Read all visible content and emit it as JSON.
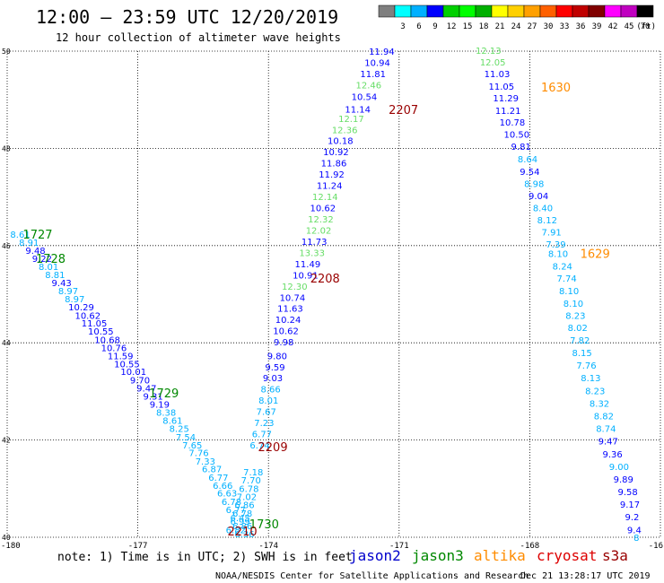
{
  "header": {
    "title": "12:00 – 23:59 UTC 12/20/2019",
    "subtitle": "12 hour collection of altimeter wave heights"
  },
  "legend_scale": {
    "unit": "(ft)",
    "items": [
      {
        "label": "",
        "color": "#7f7f7f"
      },
      {
        "label": "3",
        "color": "#00ffff"
      },
      {
        "label": "6",
        "color": "#00b0ff"
      },
      {
        "label": "9",
        "color": "#0000ff"
      },
      {
        "label": "12",
        "color": "#00d000"
      },
      {
        "label": "15",
        "color": "#00ff00"
      },
      {
        "label": "18",
        "color": "#00b000"
      },
      {
        "label": "21",
        "color": "#ffff00"
      },
      {
        "label": "24",
        "color": "#ffd000"
      },
      {
        "label": "27",
        "color": "#ffa000"
      },
      {
        "label": "30",
        "color": "#ff6000"
      },
      {
        "label": "33",
        "color": "#ff0000"
      },
      {
        "label": "36",
        "color": "#c00000"
      },
      {
        "label": "39",
        "color": "#800000"
      },
      {
        "label": "42",
        "color": "#ff00ff"
      },
      {
        "label": "45",
        "color": "#c000c0"
      },
      {
        "label": "70",
        "color": "#000000"
      }
    ]
  },
  "footer": {
    "note": "note:  1) Time is in UTC;  2) SWH is in feet",
    "satellites": [
      {
        "name": "jason2",
        "color": "#0000cc"
      },
      {
        "name": "jason3",
        "color": "#008800"
      },
      {
        "name": "altika",
        "color": "#ff8c00"
      },
      {
        "name": "cryosat",
        "color": "#dd0000"
      },
      {
        "name": "s3a",
        "color": "#990000"
      }
    ],
    "credit": "NOAA/NESDIS Center for Satellite Applications and Research",
    "timestamp": "Dec 21 13:28:17 UTC 2019"
  },
  "chart_data": {
    "type": "scatter",
    "xlim": [
      -180,
      -165
    ],
    "ylim": [
      40,
      50
    ],
    "xticks": [
      -177,
      -174,
      -171,
      -168
    ],
    "xtick_labels": [
      "-177",
      "-174",
      "-171",
      "-168"
    ],
    "xedge_labels": [
      "-180",
      "-16"
    ],
    "yticks": [
      40,
      42,
      44,
      46,
      48,
      50
    ],
    "grid": true,
    "pass_labels": [
      {
        "text": "1727",
        "lon": -179.3,
        "lat": 46.24,
        "color": "#008800"
      },
      {
        "text": "1728",
        "lon": -179.0,
        "lat": 45.74,
        "color": "#008800"
      },
      {
        "text": "1729",
        "lon": -176.4,
        "lat": 42.97,
        "color": "#008800"
      },
      {
        "text": "1730",
        "lon": -174.1,
        "lat": 40.28,
        "color": "#008800"
      },
      {
        "text": "2210",
        "lon": -174.6,
        "lat": 40.13,
        "color": "#990000"
      },
      {
        "text": "2209",
        "lon": -173.9,
        "lat": 41.86,
        "color": "#990000"
      },
      {
        "text": "2208",
        "lon": -172.7,
        "lat": 45.33,
        "color": "#990000"
      },
      {
        "text": "2207",
        "lon": -170.9,
        "lat": 48.8,
        "color": "#990000"
      },
      {
        "text": "1630",
        "lon": -167.4,
        "lat": 49.26,
        "color": "#ff8c00"
      },
      {
        "text": "1629",
        "lon": -166.5,
        "lat": 45.84,
        "color": "#ff8c00"
      }
    ],
    "series": [
      {
        "points": [
          {
            "lon": -179.7,
            "lat": 46.24,
            "v": "8.61",
            "c": "#00b0ff"
          },
          {
            "lon": -179.5,
            "lat": 46.07,
            "v": "8.91",
            "c": "#00b0ff"
          },
          {
            "lon": -179.35,
            "lat": 45.9,
            "v": "9.48",
            "c": "#0000ff"
          },
          {
            "lon": -179.2,
            "lat": 45.74,
            "v": "9.22",
            "c": "#0000ff"
          },
          {
            "lon": -179.05,
            "lat": 45.57,
            "v": "8.01",
            "c": "#00b0ff"
          },
          {
            "lon": -178.9,
            "lat": 45.41,
            "v": "8.81",
            "c": "#00b0ff"
          },
          {
            "lon": -178.75,
            "lat": 45.24,
            "v": "9.43",
            "c": "#0000ff"
          },
          {
            "lon": -178.6,
            "lat": 45.07,
            "v": "8.97",
            "c": "#00b0ff"
          },
          {
            "lon": -178.45,
            "lat": 44.91,
            "v": "8.97",
            "c": "#00b0ff"
          },
          {
            "lon": -178.3,
            "lat": 44.74,
            "v": "10.29",
            "c": "#0000ff"
          },
          {
            "lon": -178.15,
            "lat": 44.57,
            "v": "10.62",
            "c": "#0000ff"
          },
          {
            "lon": -178.0,
            "lat": 44.41,
            "v": "11.05",
            "c": "#0000ff"
          },
          {
            "lon": -177.85,
            "lat": 44.24,
            "v": "10.55",
            "c": "#0000ff"
          },
          {
            "lon": -177.7,
            "lat": 44.07,
            "v": "10.68",
            "c": "#0000ff"
          },
          {
            "lon": -177.55,
            "lat": 43.9,
            "v": "10.76",
            "c": "#0000ff"
          },
          {
            "lon": -177.4,
            "lat": 43.74,
            "v": "11.59",
            "c": "#0000ff"
          },
          {
            "lon": -177.25,
            "lat": 43.57,
            "v": "10.55",
            "c": "#0000ff"
          },
          {
            "lon": -177.1,
            "lat": 43.41,
            "v": "10.01",
            "c": "#0000ff"
          },
          {
            "lon": -176.95,
            "lat": 43.24,
            "v": "9.70",
            "c": "#0000ff"
          },
          {
            "lon": -176.8,
            "lat": 43.07,
            "v": "9.47",
            "c": "#0000ff"
          },
          {
            "lon": -176.65,
            "lat": 42.91,
            "v": "9.31",
            "c": "#0000ff"
          },
          {
            "lon": -176.5,
            "lat": 42.74,
            "v": "9.19",
            "c": "#0000ff"
          },
          {
            "lon": -176.35,
            "lat": 42.57,
            "v": "8.38",
            "c": "#00b0ff"
          },
          {
            "lon": -176.2,
            "lat": 42.41,
            "v": "8.61",
            "c": "#00b0ff"
          },
          {
            "lon": -176.05,
            "lat": 42.24,
            "v": "8.25",
            "c": "#00b0ff"
          },
          {
            "lon": -175.9,
            "lat": 42.07,
            "v": "7.54",
            "c": "#00b0ff"
          },
          {
            "lon": -175.75,
            "lat": 41.9,
            "v": "7.65",
            "c": "#00b0ff"
          },
          {
            "lon": -175.6,
            "lat": 41.74,
            "v": "7.76",
            "c": "#00b0ff"
          },
          {
            "lon": -175.45,
            "lat": 41.57,
            "v": "7.33",
            "c": "#00b0ff"
          },
          {
            "lon": -175.3,
            "lat": 41.41,
            "v": "6.87",
            "c": "#00b0ff"
          },
          {
            "lon": -175.15,
            "lat": 41.24,
            "v": "6.77",
            "c": "#00b0ff"
          },
          {
            "lon": -175.05,
            "lat": 41.07,
            "v": "6.66",
            "c": "#00b0ff"
          },
          {
            "lon": -174.95,
            "lat": 40.91,
            "v": "6.63",
            "c": "#00b0ff"
          },
          {
            "lon": -174.85,
            "lat": 40.74,
            "v": "6.78",
            "c": "#00b0ff"
          },
          {
            "lon": -174.75,
            "lat": 40.57,
            "v": "6.77",
            "c": "#00b0ff"
          },
          {
            "lon": -174.65,
            "lat": 40.41,
            "v": "6.45",
            "c": "#00b0ff"
          },
          {
            "lon": -174.6,
            "lat": 40.24,
            "v": "6.86",
            "c": "#00b0ff"
          },
          {
            "lon": -174.55,
            "lat": 40.07,
            "v": "6.36",
            "c": "#00b0ff"
          }
        ]
      },
      {
        "points": [
          {
            "lon": -174.75,
            "lat": 40.16,
            "v": "6.82",
            "c": "#00b0ff"
          },
          {
            "lon": -174.65,
            "lat": 40.33,
            "v": "6.99",
            "c": "#00b0ff"
          },
          {
            "lon": -174.6,
            "lat": 40.5,
            "v": "6.78",
            "c": "#00b0ff"
          },
          {
            "lon": -174.55,
            "lat": 40.67,
            "v": "6.86",
            "c": "#00b0ff"
          },
          {
            "lon": -174.5,
            "lat": 40.84,
            "v": "7.02",
            "c": "#00b0ff"
          },
          {
            "lon": -174.45,
            "lat": 41.01,
            "v": "6.78",
            "c": "#00b0ff"
          },
          {
            "lon": -174.4,
            "lat": 41.18,
            "v": "7.70",
            "c": "#00b0ff"
          },
          {
            "lon": -174.35,
            "lat": 41.35,
            "v": "7.18",
            "c": "#00b0ff"
          },
          {
            "lon": -174.2,
            "lat": 41.9,
            "v": "6.74",
            "c": "#00b0ff"
          },
          {
            "lon": -174.15,
            "lat": 42.13,
            "v": "6.77",
            "c": "#00b0ff"
          },
          {
            "lon": -174.1,
            "lat": 42.36,
            "v": "7.23",
            "c": "#00b0ff"
          },
          {
            "lon": -174.05,
            "lat": 42.59,
            "v": "7.67",
            "c": "#00b0ff"
          },
          {
            "lon": -174.0,
            "lat": 42.82,
            "v": "8.01",
            "c": "#00b0ff"
          },
          {
            "lon": -173.95,
            "lat": 43.05,
            "v": "8.66",
            "c": "#00b0ff"
          },
          {
            "lon": -173.9,
            "lat": 43.28,
            "v": "9.03",
            "c": "#0000ff"
          },
          {
            "lon": -173.85,
            "lat": 43.51,
            "v": "9.59",
            "c": "#0000ff"
          },
          {
            "lon": -173.8,
            "lat": 43.74,
            "v": "9.80",
            "c": "#0000ff"
          },
          {
            "lon": -173.65,
            "lat": 44.02,
            "v": "9.98",
            "c": "#0000ff"
          },
          {
            "lon": -173.6,
            "lat": 44.25,
            "v": "10.62",
            "c": "#0000ff"
          },
          {
            "lon": -173.55,
            "lat": 44.48,
            "v": "10.24",
            "c": "#0000ff"
          },
          {
            "lon": -173.5,
            "lat": 44.71,
            "v": "11.63",
            "c": "#0000ff"
          },
          {
            "lon": -173.45,
            "lat": 44.94,
            "v": "10.74",
            "c": "#0000ff"
          },
          {
            "lon": -173.4,
            "lat": 45.17,
            "v": "12.30",
            "c": "#66dd66"
          },
          {
            "lon": -173.15,
            "lat": 45.4,
            "v": "10.91",
            "c": "#0000ff"
          },
          {
            "lon": -173.1,
            "lat": 45.63,
            "v": "11.49",
            "c": "#0000ff"
          },
          {
            "lon": -173.0,
            "lat": 45.86,
            "v": "13.33",
            "c": "#66dd66"
          },
          {
            "lon": -172.95,
            "lat": 46.09,
            "v": "11.73",
            "c": "#0000ff"
          },
          {
            "lon": -172.85,
            "lat": 46.32,
            "v": "12.02",
            "c": "#66dd66"
          },
          {
            "lon": -172.8,
            "lat": 46.55,
            "v": "12.32",
            "c": "#66dd66"
          },
          {
            "lon": -172.75,
            "lat": 46.78,
            "v": "10.62",
            "c": "#0000ff"
          },
          {
            "lon": -172.7,
            "lat": 47.01,
            "v": "12.14",
            "c": "#66dd66"
          },
          {
            "lon": -172.6,
            "lat": 47.24,
            "v": "11.24",
            "c": "#0000ff"
          },
          {
            "lon": -172.55,
            "lat": 47.47,
            "v": "11.92",
            "c": "#0000ff"
          },
          {
            "lon": -172.5,
            "lat": 47.7,
            "v": "11.86",
            "c": "#0000ff"
          },
          {
            "lon": -172.45,
            "lat": 47.93,
            "v": "10.92",
            "c": "#0000ff"
          },
          {
            "lon": -172.35,
            "lat": 48.16,
            "v": "10.18",
            "c": "#0000ff"
          },
          {
            "lon": -172.25,
            "lat": 48.39,
            "v": "12.36",
            "c": "#66dd66"
          },
          {
            "lon": -172.1,
            "lat": 48.62,
            "v": "12.17",
            "c": "#66dd66"
          },
          {
            "lon": -171.95,
            "lat": 48.81,
            "v": "11.14",
            "c": "#0000ff"
          },
          {
            "lon": -171.8,
            "lat": 49.07,
            "v": "10.54",
            "c": "#0000ff"
          },
          {
            "lon": -171.7,
            "lat": 49.31,
            "v": "12.46",
            "c": "#66dd66"
          },
          {
            "lon": -171.6,
            "lat": 49.54,
            "v": "11.81",
            "c": "#0000ff"
          },
          {
            "lon": -171.5,
            "lat": 49.77,
            "v": "10.94",
            "c": "#0000ff"
          },
          {
            "lon": -171.4,
            "lat": 50.0,
            "v": "11.94",
            "c": "#0000ff"
          }
        ]
      },
      {
        "points": [
          {
            "lon": -168.95,
            "lat": 50.02,
            "v": "12.13",
            "c": "#66dd66"
          },
          {
            "lon": -168.85,
            "lat": 49.78,
            "v": "12.05",
            "c": "#66dd66"
          },
          {
            "lon": -168.75,
            "lat": 49.54,
            "v": "11.03",
            "c": "#0000ff"
          },
          {
            "lon": -168.65,
            "lat": 49.28,
            "v": "11.05",
            "c": "#0000ff"
          },
          {
            "lon": -168.55,
            "lat": 49.04,
            "v": "11.29",
            "c": "#0000ff"
          },
          {
            "lon": -168.5,
            "lat": 48.78,
            "v": "11.21",
            "c": "#0000ff"
          },
          {
            "lon": -168.4,
            "lat": 48.54,
            "v": "10.78",
            "c": "#0000ff"
          },
          {
            "lon": -168.3,
            "lat": 48.29,
            "v": "10.50",
            "c": "#0000ff"
          },
          {
            "lon": -168.2,
            "lat": 48.04,
            "v": "9.81",
            "c": "#0000ff"
          },
          {
            "lon": -168.05,
            "lat": 47.79,
            "v": "8.64",
            "c": "#00b0ff"
          },
          {
            "lon": -168.0,
            "lat": 47.53,
            "v": "9.54",
            "c": "#0000ff"
          },
          {
            "lon": -167.9,
            "lat": 47.28,
            "v": "8.98",
            "c": "#00b0ff"
          },
          {
            "lon": -167.8,
            "lat": 47.03,
            "v": "9.04",
            "c": "#0000ff"
          },
          {
            "lon": -167.7,
            "lat": 46.78,
            "v": "8.40",
            "c": "#00b0ff"
          },
          {
            "lon": -167.6,
            "lat": 46.53,
            "v": "8.12",
            "c": "#00b0ff"
          },
          {
            "lon": -167.5,
            "lat": 46.28,
            "v": "7.91",
            "c": "#00b0ff"
          },
          {
            "lon": -167.4,
            "lat": 46.03,
            "v": "7.39",
            "c": "#00b0ff"
          },
          {
            "lon": -167.35,
            "lat": 45.84,
            "v": "8.10",
            "c": "#00b0ff"
          },
          {
            "lon": -167.25,
            "lat": 45.58,
            "v": "8.24",
            "c": "#00b0ff"
          },
          {
            "lon": -167.15,
            "lat": 45.33,
            "v": "7.74",
            "c": "#00b0ff"
          },
          {
            "lon": -167.1,
            "lat": 45.07,
            "v": "8.10",
            "c": "#00b0ff"
          },
          {
            "lon": -167.0,
            "lat": 44.82,
            "v": "8.10",
            "c": "#00b0ff"
          },
          {
            "lon": -166.95,
            "lat": 44.57,
            "v": "8.23",
            "c": "#00b0ff"
          },
          {
            "lon": -166.9,
            "lat": 44.32,
            "v": "8.02",
            "c": "#00b0ff"
          },
          {
            "lon": -166.85,
            "lat": 44.06,
            "v": "7.82",
            "c": "#00b0ff"
          },
          {
            "lon": -166.8,
            "lat": 43.8,
            "v": "8.15",
            "c": "#00b0ff"
          },
          {
            "lon": -166.7,
            "lat": 43.54,
            "v": "7.76",
            "c": "#00b0ff"
          },
          {
            "lon": -166.6,
            "lat": 43.28,
            "v": "8.13",
            "c": "#00b0ff"
          },
          {
            "lon": -166.5,
            "lat": 43.02,
            "v": "8.23",
            "c": "#00b0ff"
          },
          {
            "lon": -166.4,
            "lat": 42.76,
            "v": "8.32",
            "c": "#00b0ff"
          },
          {
            "lon": -166.3,
            "lat": 42.5,
            "v": "8.82",
            "c": "#00b0ff"
          },
          {
            "lon": -166.25,
            "lat": 42.24,
            "v": "8.74",
            "c": "#00b0ff"
          },
          {
            "lon": -166.2,
            "lat": 41.98,
            "v": "9.47",
            "c": "#0000ff"
          },
          {
            "lon": -166.1,
            "lat": 41.72,
            "v": "9.36",
            "c": "#0000ff"
          },
          {
            "lon": -165.95,
            "lat": 41.46,
            "v": "9.00",
            "c": "#00b0ff"
          },
          {
            "lon": -165.85,
            "lat": 41.2,
            "v": "9.89",
            "c": "#0000ff"
          },
          {
            "lon": -165.75,
            "lat": 40.94,
            "v": "9.58",
            "c": "#0000ff"
          },
          {
            "lon": -165.7,
            "lat": 40.68,
            "v": "9.17",
            "c": "#0000ff"
          },
          {
            "lon": -165.65,
            "lat": 40.42,
            "v": "9.2",
            "c": "#0000ff"
          },
          {
            "lon": -165.6,
            "lat": 40.16,
            "v": "9.4",
            "c": "#0000ff"
          },
          {
            "lon": -165.55,
            "lat": 40.0,
            "v": "8",
            "c": "#00b0ff"
          }
        ]
      }
    ]
  }
}
